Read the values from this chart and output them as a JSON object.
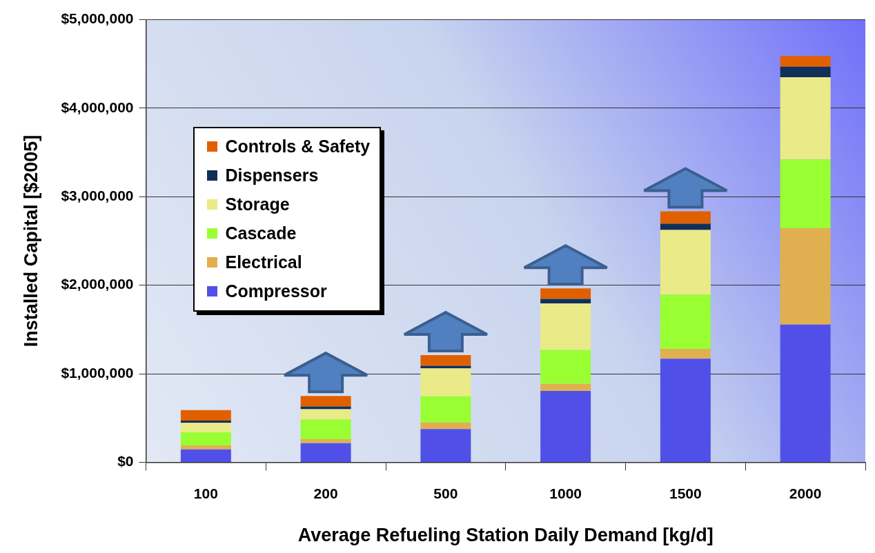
{
  "chart_data": {
    "type": "bar",
    "stacked": true,
    "xlabel": "Average Refueling Station Daily Demand [kg/d]",
    "ylabel": "Installed Capital [$2005]",
    "categories": [
      "100",
      "200",
      "500",
      "1000",
      "1500",
      "2000"
    ],
    "series": [
      {
        "name": "Compressor",
        "color": "#5050e8",
        "values": [
          145000,
          215000,
          375000,
          805000,
          1170000,
          1555000
        ]
      },
      {
        "name": "Electrical",
        "color": "#e0b050",
        "values": [
          45000,
          45000,
          75000,
          80000,
          110000,
          1090000
        ]
      },
      {
        "name": "Cascade",
        "color": "#99ff33",
        "values": [
          150000,
          225000,
          295000,
          385000,
          615000,
          775000
        ]
      },
      {
        "name": "Storage",
        "color": "#eaea88",
        "values": [
          105000,
          115000,
          315000,
          525000,
          730000,
          930000
        ]
      },
      {
        "name": "Dispensers",
        "color": "#10305a",
        "values": [
          25000,
          30000,
          30000,
          50000,
          70000,
          120000
        ]
      },
      {
        "name": "Controls & Safety",
        "color": "#e06000",
        "values": [
          120000,
          120000,
          120000,
          120000,
          140000,
          120000
        ]
      }
    ],
    "ylim": [
      0,
      5000000
    ],
    "yticks": [
      {
        "value": 0,
        "label": "$0"
      },
      {
        "value": 1000000,
        "label": "$1,000,000"
      },
      {
        "value": 2000000,
        "label": "$2,000,000"
      },
      {
        "value": 3000000,
        "label": "$3,000,000"
      },
      {
        "value": 4000000,
        "label": "$4,000,000"
      },
      {
        "value": 5000000,
        "label": "$5,000,000"
      }
    ],
    "grid": "y",
    "legend": "top left"
  }
}
